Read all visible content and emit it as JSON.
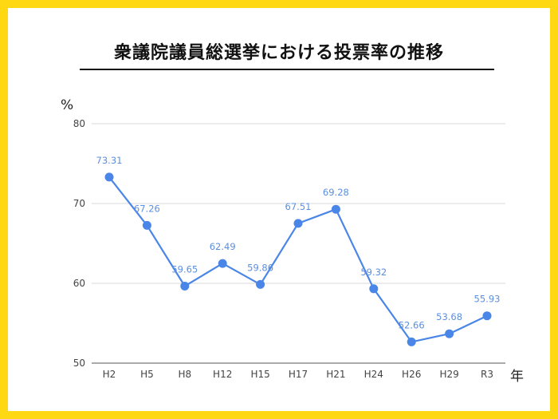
{
  "chart_data": {
    "type": "line",
    "title": "衆議院議員総選挙における投票率の推移",
    "xlabel": "年",
    "ylabel": "%",
    "categories": [
      "H2",
      "H5",
      "H8",
      "H12",
      "H15",
      "H17",
      "H21",
      "H24",
      "H26",
      "H29",
      "R3"
    ],
    "series": [
      {
        "name": "",
        "values": [
          73.31,
          67.26,
          59.65,
          62.49,
          59.86,
          67.51,
          69.28,
          59.32,
          52.66,
          53.68,
          55.93
        ]
      }
    ],
    "yticks": [
      "50",
      "60",
      "70",
      "80"
    ],
    "ylim": [
      50,
      80
    ],
    "grid": true,
    "legend": "none",
    "colors": {
      "line": "#4A86E8",
      "data_label": "#5B8FE0",
      "frame": "#FFD814",
      "grid": "#D9D9D9"
    }
  }
}
